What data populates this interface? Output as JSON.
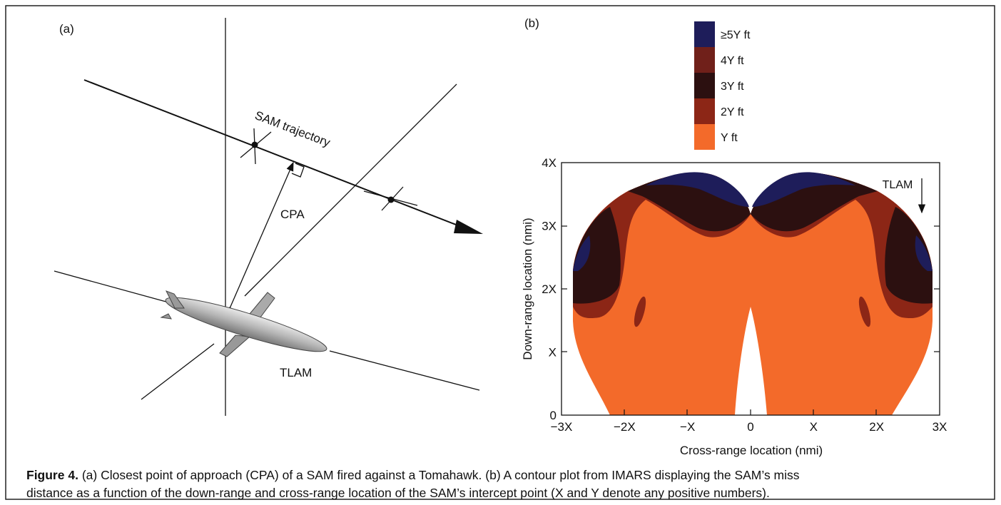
{
  "panel_a": {
    "label": "(a)",
    "trajectory_label": "SAM trajectory",
    "cpa_label": "CPA",
    "missile_label": "TLAM"
  },
  "panel_b": {
    "label": "(b)",
    "legend": [
      "≥5Y ft",
      "4Y ft",
      "3Y ft",
      "2Y ft",
      "Y ft"
    ],
    "legend_colors": [
      "#1e1d5a",
      "#70201a",
      "#2c1010",
      "#8c2616",
      "#f36a2a"
    ],
    "x_axis_label": "Cross-range location (nmi)",
    "y_axis_label": "Down-range location (nmi)",
    "x_tick_labels": [
      "−3X",
      "−2X",
      "−X",
      "0",
      "X",
      "2X",
      "3X"
    ],
    "y_tick_labels": [
      "0",
      "X",
      "2X",
      "3X",
      "4X"
    ],
    "direction_label": "TLAM"
  },
  "caption": {
    "label": "Figure 4.",
    "text": "(a) Closest point of approach (CPA) of a SAM fired against a Tomahawk. (b) A contour plot from IMARS displaying the SAM’s miss",
    "text2": "distance as a function of the down-range and cross-range location of the SAM’s intercept point (X and Y denote any positive numbers)."
  }
}
